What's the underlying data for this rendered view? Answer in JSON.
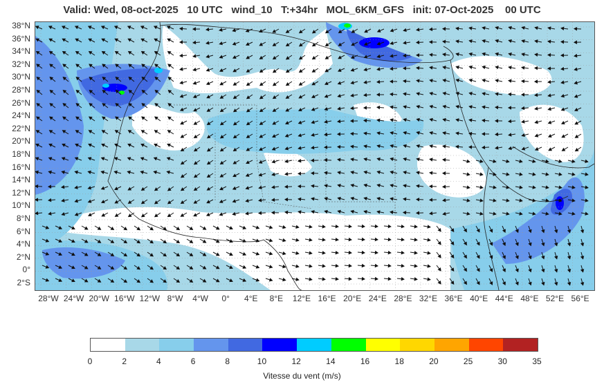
{
  "title": "Valid: Wed, 08-oct-2025   10 UTC   wind_10   T:+34hr   MOL_6KM_GFS   init: 07-Oct-2025    00 UTC",
  "lat_labels": [
    "38°N",
    "36°N",
    "34°N",
    "32°N",
    "30°N",
    "28°N",
    "26°N",
    "24°N",
    "22°N",
    "20°N",
    "18°N",
    "16°N",
    "14°N",
    "12°N",
    "10°N",
    "8°N",
    "6°N",
    "4°N",
    "2°N",
    "0°",
    "2°S"
  ],
  "lon_labels": [
    "28°W",
    "24°W",
    "20°W",
    "16°W",
    "12°W",
    "8°W",
    "4°W",
    "0°",
    "4°E",
    "8°E",
    "12°E",
    "16°E",
    "20°E",
    "24°E",
    "28°E",
    "32°E",
    "36°E",
    "40°E",
    "44°E",
    "48°E",
    "52°E",
    "56°E"
  ],
  "legend": {
    "label": "Vitesse du vent (m/s)",
    "ticks": [
      "0",
      "2",
      "4",
      "6",
      "8",
      "10",
      "12",
      "14",
      "16",
      "18",
      "20",
      "25",
      "30",
      "35"
    ],
    "colors": [
      "#ffffff",
      "#a8d8e8",
      "#87ceeb",
      "#6495ed",
      "#4169e1",
      "#0000ff",
      "#00ccff",
      "#00ff00",
      "#ffff00",
      "#ffd700",
      "#ffa500",
      "#ff4500",
      "#b22222"
    ]
  }
}
